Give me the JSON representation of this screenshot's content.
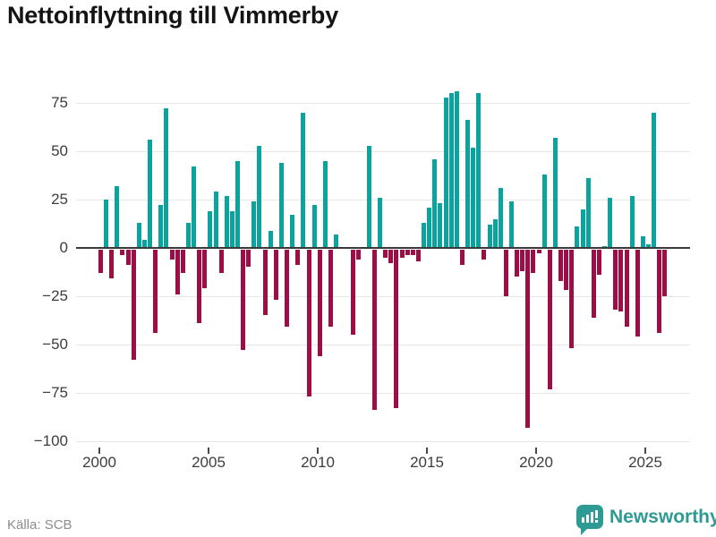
{
  "title": "Nettoinflyttning till Vimmerby",
  "source": "Källa: SCB",
  "logo": {
    "text": "Newsworthy"
  },
  "chart_data": {
    "type": "bar",
    "title": "Nettoinflyttning till Vimmerby",
    "frequency": "quarterly",
    "grid": true,
    "legend": "none",
    "ylim": [
      -100,
      85
    ],
    "y_ticks": [
      75,
      50,
      25,
      0,
      -25,
      -50,
      -75,
      -100
    ],
    "y_tick_labels": [
      "75",
      "50",
      "25",
      "0",
      "−25",
      "−50",
      "−75",
      "−100"
    ],
    "x_tick_labels": [
      "2000",
      "2005",
      "2010",
      "2015",
      "2020",
      "2025"
    ],
    "colors": {
      "positive": "#0aa39e",
      "negative": "#9c0e45"
    },
    "points": [
      {
        "q": "2000 Q1",
        "v": -12
      },
      {
        "q": "2000 Q2",
        "v": 25
      },
      {
        "q": "2000 Q3",
        "v": -15
      },
      {
        "q": "2000 Q4",
        "v": 32
      },
      {
        "q": "2001 Q1",
        "v": -3
      },
      {
        "q": "2001 Q2",
        "v": -8
      },
      {
        "q": "2001 Q3",
        "v": -57
      },
      {
        "q": "2001 Q4",
        "v": 13
      },
      {
        "q": "2002 Q1",
        "v": 4
      },
      {
        "q": "2002 Q2",
        "v": 56
      },
      {
        "q": "2002 Q3",
        "v": -43
      },
      {
        "q": "2002 Q4",
        "v": 22
      },
      {
        "q": "2003 Q1",
        "v": 72
      },
      {
        "q": "2003 Q2",
        "v": -5
      },
      {
        "q": "2003 Q3",
        "v": -23
      },
      {
        "q": "2003 Q4",
        "v": -12
      },
      {
        "q": "2004 Q1",
        "v": 13
      },
      {
        "q": "2004 Q2",
        "v": 42
      },
      {
        "q": "2004 Q3",
        "v": -38
      },
      {
        "q": "2004 Q4",
        "v": -20
      },
      {
        "q": "2005 Q1",
        "v": 19
      },
      {
        "q": "2005 Q2",
        "v": 29
      },
      {
        "q": "2005 Q3",
        "v": -12
      },
      {
        "q": "2005 Q4",
        "v": 27
      },
      {
        "q": "2006 Q1",
        "v": 19
      },
      {
        "q": "2006 Q2",
        "v": 45
      },
      {
        "q": "2006 Q3",
        "v": -52
      },
      {
        "q": "2006 Q4",
        "v": -9
      },
      {
        "q": "2007 Q1",
        "v": 24
      },
      {
        "q": "2007 Q2",
        "v": 53
      },
      {
        "q": "2007 Q3",
        "v": -34
      },
      {
        "q": "2007 Q4",
        "v": 9
      },
      {
        "q": "2008 Q1",
        "v": -26
      },
      {
        "q": "2008 Q2",
        "v": 44
      },
      {
        "q": "2008 Q3",
        "v": -40
      },
      {
        "q": "2008 Q4",
        "v": 17
      },
      {
        "q": "2009 Q1",
        "v": -8
      },
      {
        "q": "2009 Q2",
        "v": 70
      },
      {
        "q": "2009 Q3",
        "v": -76
      },
      {
        "q": "2009 Q4",
        "v": 22
      },
      {
        "q": "2010 Q1",
        "v": -55
      },
      {
        "q": "2010 Q2",
        "v": 45
      },
      {
        "q": "2010 Q3",
        "v": -40
      },
      {
        "q": "2010 Q4",
        "v": 7
      },
      {
        "q": "2011 Q1",
        "v": 0
      },
      {
        "q": "2011 Q2",
        "v": 0
      },
      {
        "q": "2011 Q3",
        "v": -44
      },
      {
        "q": "2011 Q4",
        "v": -5
      },
      {
        "q": "2012 Q1",
        "v": 0
      },
      {
        "q": "2012 Q2",
        "v": 53
      },
      {
        "q": "2012 Q3",
        "v": -83
      },
      {
        "q": "2012 Q4",
        "v": 26
      },
      {
        "q": "2013 Q1",
        "v": -4
      },
      {
        "q": "2013 Q2",
        "v": -7
      },
      {
        "q": "2013 Q3",
        "v": -82
      },
      {
        "q": "2013 Q4",
        "v": -4
      },
      {
        "q": "2014 Q1",
        "v": -3
      },
      {
        "q": "2014 Q2",
        "v": -3
      },
      {
        "q": "2014 Q3",
        "v": -6
      },
      {
        "q": "2014 Q4",
        "v": 13
      },
      {
        "q": "2015 Q1",
        "v": 21
      },
      {
        "q": "2015 Q2",
        "v": 46
      },
      {
        "q": "2015 Q3",
        "v": 23
      },
      {
        "q": "2015 Q4",
        "v": 78
      },
      {
        "q": "2016 Q1",
        "v": 80
      },
      {
        "q": "2016 Q2",
        "v": 81
      },
      {
        "q": "2016 Q3",
        "v": -8
      },
      {
        "q": "2016 Q4",
        "v": 66
      },
      {
        "q": "2017 Q1",
        "v": 52
      },
      {
        "q": "2017 Q2",
        "v": 80
      },
      {
        "q": "2017 Q3",
        "v": -5
      },
      {
        "q": "2017 Q4",
        "v": 12
      },
      {
        "q": "2018 Q1",
        "v": 15
      },
      {
        "q": "2018 Q2",
        "v": 31
      },
      {
        "q": "2018 Q3",
        "v": -24
      },
      {
        "q": "2018 Q4",
        "v": 24
      },
      {
        "q": "2019 Q1",
        "v": -14
      },
      {
        "q": "2019 Q2",
        "v": -11
      },
      {
        "q": "2019 Q3",
        "v": -92
      },
      {
        "q": "2019 Q4",
        "v": -12
      },
      {
        "q": "2020 Q1",
        "v": -2
      },
      {
        "q": "2020 Q2",
        "v": 38
      },
      {
        "q": "2020 Q3",
        "v": -72
      },
      {
        "q": "2020 Q4",
        "v": 57
      },
      {
        "q": "2021 Q1",
        "v": -16
      },
      {
        "q": "2021 Q2",
        "v": -21
      },
      {
        "q": "2021 Q3",
        "v": -51
      },
      {
        "q": "2021 Q4",
        "v": 11
      },
      {
        "q": "2022 Q1",
        "v": 20
      },
      {
        "q": "2022 Q2",
        "v": 36
      },
      {
        "q": "2022 Q3",
        "v": -35
      },
      {
        "q": "2022 Q4",
        "v": -13
      },
      {
        "q": "2023 Q1",
        "v": 1
      },
      {
        "q": "2023 Q2",
        "v": 26
      },
      {
        "q": "2023 Q3",
        "v": -31
      },
      {
        "q": "2023 Q4",
        "v": -32
      },
      {
        "q": "2024 Q1",
        "v": -40
      },
      {
        "q": "2024 Q2",
        "v": 27
      },
      {
        "q": "2024 Q3",
        "v": -45
      },
      {
        "q": "2024 Q4",
        "v": 6
      },
      {
        "q": "2025 Q1",
        "v": 2
      },
      {
        "q": "2025 Q2",
        "v": 70
      },
      {
        "q": "2025 Q3",
        "v": -43
      },
      {
        "q": "2025 Q4",
        "v": -24
      }
    ]
  }
}
